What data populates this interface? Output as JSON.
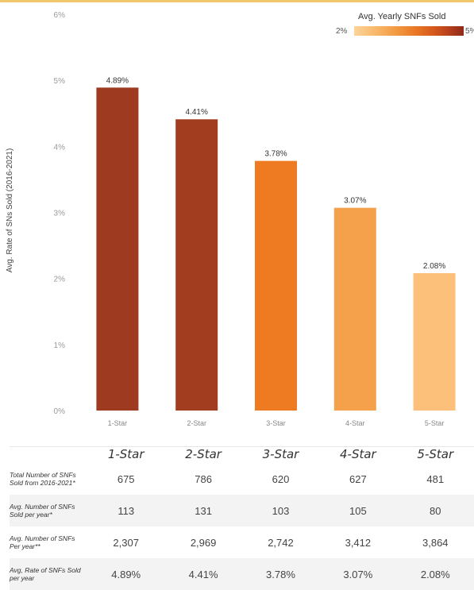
{
  "chart_data": {
    "type": "bar",
    "categories": [
      "1-Star",
      "2-Star",
      "3-Star",
      "4-Star",
      "5-Star"
    ],
    "values": [
      4.89,
      4.41,
      3.78,
      3.07,
      2.08
    ],
    "value_labels": [
      "4.89%",
      "4.41%",
      "3.78%",
      "3.07%",
      "2.08%"
    ],
    "bar_colors": [
      "#9e3a1f",
      "#a33d1f",
      "#ee7a22",
      "#f5a04b",
      "#fcc07a"
    ],
    "ylabel": "Avg. Rate of SNs Sold (2016-2021)",
    "yticks": [
      "0%",
      "1%",
      "2%",
      "3%",
      "4%",
      "5%",
      "6%"
    ],
    "ylim": [
      0,
      6
    ],
    "grid": false
  },
  "legend": {
    "title": "Avg. Yearly SNFs Sold",
    "min_label": "2%",
    "max_label": "5%"
  },
  "table": {
    "headers": [
      "1-Star",
      "2-Star",
      "3-Star",
      "4-Star",
      "5-Star"
    ],
    "rows": [
      {
        "label": "Total Number of SNFs Sold from 2016-2021*",
        "values": [
          "675",
          "786",
          "620",
          "627",
          "481"
        ]
      },
      {
        "label": "Avg. Number of SNFs Sold per year*",
        "values": [
          "113",
          "131",
          "103",
          "105",
          "80"
        ]
      },
      {
        "label": "Avg. Number of SNFs Per year**",
        "values": [
          "2,307",
          "2,969",
          "2,742",
          "3,412",
          "3,864"
        ]
      },
      {
        "label": "Avg, Rate of SNFs Sold per year",
        "values": [
          "4.89%",
          "4.41%",
          "3.78%",
          "3.07%",
          "2.08%"
        ]
      }
    ]
  }
}
